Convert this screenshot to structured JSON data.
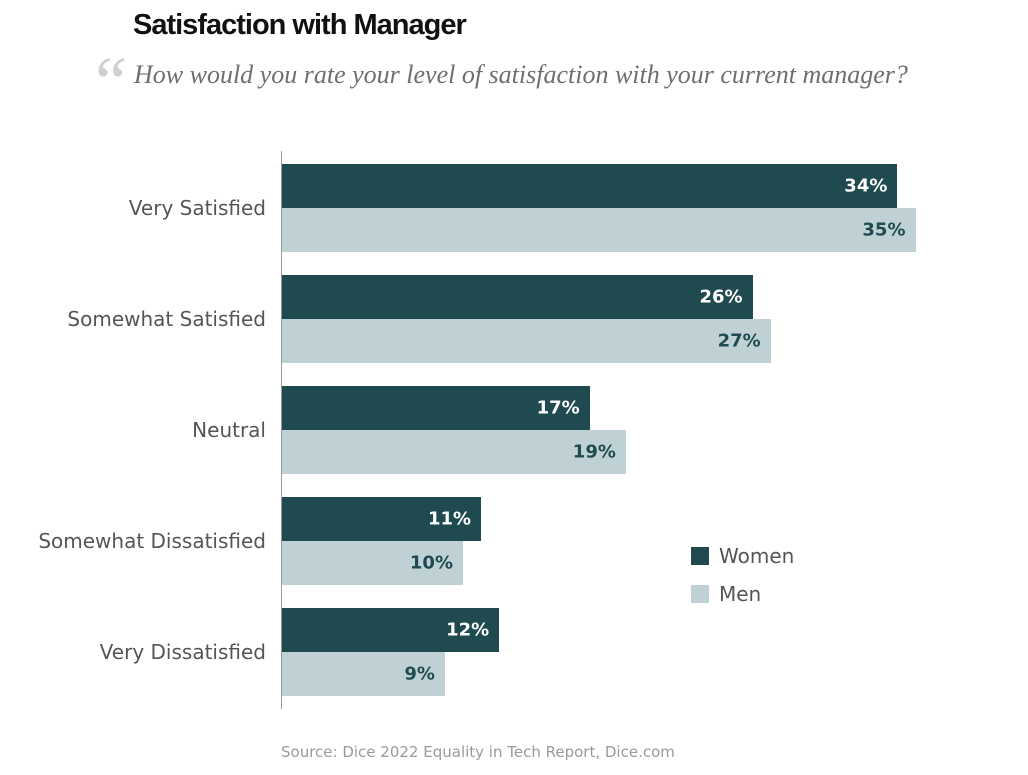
{
  "header": {
    "title": "Satisfaction with Manager",
    "quote_mark": "“",
    "subtitle": "How would you rate your level of satisfaction with your current manager?"
  },
  "chart_data": {
    "type": "bar",
    "orientation": "horizontal",
    "categories": [
      "Very Satisfied",
      "Somewhat Satisfied",
      "Neutral",
      "Somewhat Dissatisfied",
      "Very Dissatisfied"
    ],
    "series": [
      {
        "name": "Women",
        "values": [
          34,
          26,
          17,
          11,
          12
        ],
        "labels": [
          "34%",
          "26%",
          "17%",
          "11%",
          "12%"
        ],
        "color": "#1f4a50",
        "label_color": "#ffffff"
      },
      {
        "name": "Men",
        "values": [
          35,
          27,
          19,
          10,
          9
        ],
        "labels": [
          "35%",
          "27%",
          "19%",
          "10%",
          "9%"
        ],
        "color": "#bfd1d5",
        "label_color": "#1f4a50"
      }
    ],
    "unit": "%",
    "legend_position": "bottom-right"
  },
  "source": "Source: Dice 2022 Equality in Tech Report, Dice.com"
}
